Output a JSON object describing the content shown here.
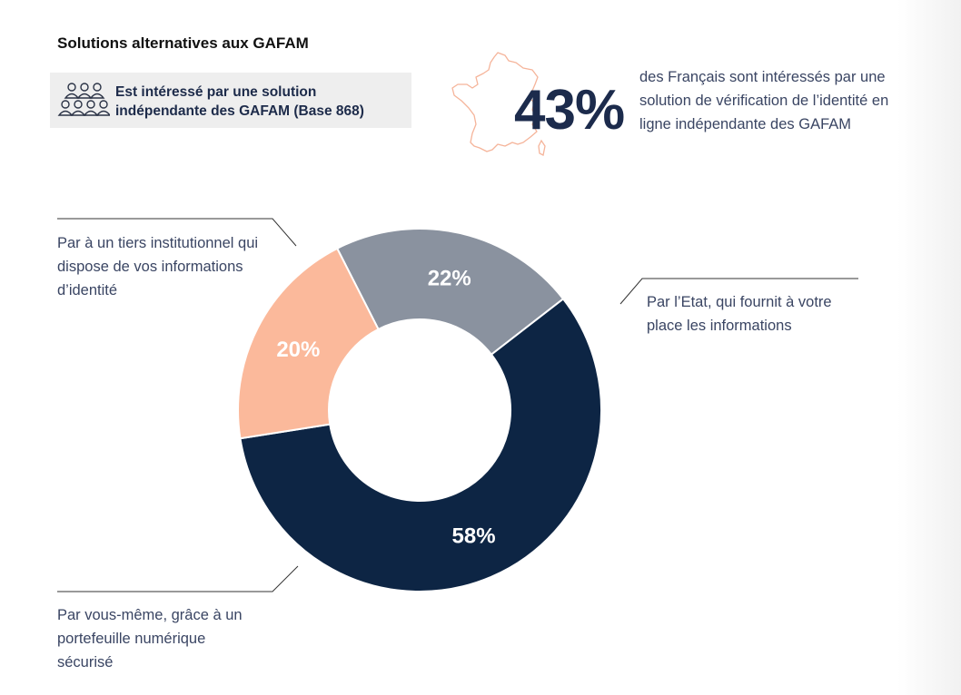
{
  "title": "Solutions alternatives aux GAFAM",
  "base_label": "Est intéressé par une solution indépendante des GAFAM (Base 868)",
  "stat": {
    "value": "43%",
    "text": "des Français sont intéressés par une solution de vérification de l’identité en ligne indépendante des GAFAM"
  },
  "icons": {
    "people": "people-group-icon",
    "france": "france-map-icon"
  },
  "colors": {
    "navy": "#0d2544",
    "gray": "#8a929f",
    "salmon": "#fbb99b",
    "map_outline": "#f5b49a"
  },
  "chart_data": {
    "type": "pie",
    "donut": true,
    "title": "",
    "slices": [
      {
        "label": "Par l’Etat, qui fournit à votre place les informations",
        "value": 22,
        "display": "22%",
        "color": "#8a929f"
      },
      {
        "label": "Par vous-même, grâce à un portefeuille numérique sécurisé",
        "value": 58,
        "display": "58%",
        "color": "#0d2544"
      },
      {
        "label": "Par à un tiers institutionnel qui dispose de vos informations d’identité",
        "value": 20,
        "display": "20%",
        "color": "#fbb99b"
      }
    ]
  },
  "callouts": {
    "tiers": "Par à un tiers institutionnel qui dispose de vos informations d’identité",
    "etat": "Par l’Etat, qui fournit à votre place les informations",
    "vous": "Par vous-même, grâce à un portefeuille numérique sécurisé"
  }
}
